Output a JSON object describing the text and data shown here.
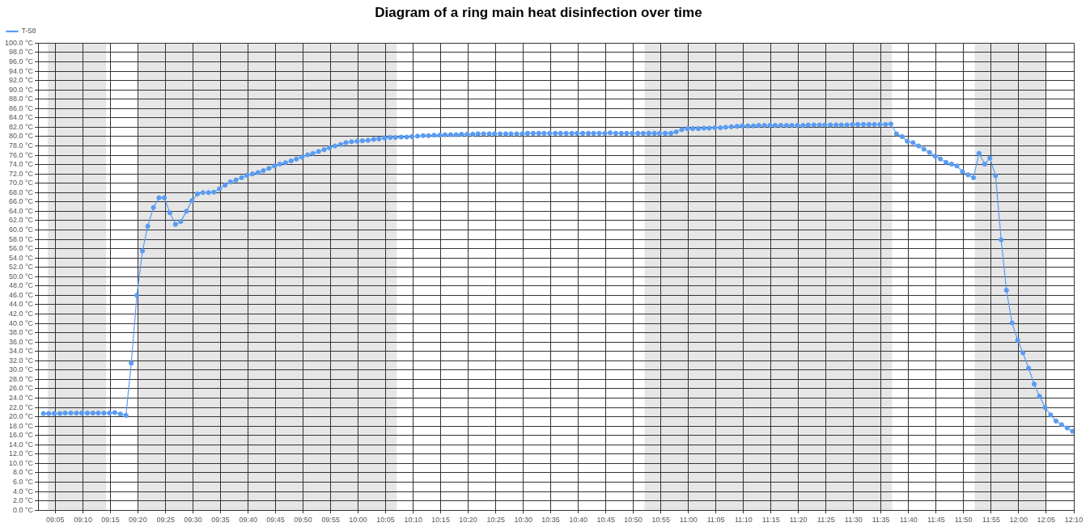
{
  "chart_data": {
    "type": "line",
    "title": "Diagram of a ring main heat disinfection over time",
    "xlim": [
      9.031,
      12.167
    ],
    "xticks": [
      {
        "value": 9.083,
        "label": "09:05"
      },
      {
        "value": 9.167,
        "label": "09:10"
      },
      {
        "value": 9.25,
        "label": "09:15"
      },
      {
        "value": 9.333,
        "label": "09:20"
      },
      {
        "value": 9.417,
        "label": "09:25"
      },
      {
        "value": 9.5,
        "label": "09:30"
      },
      {
        "value": 9.583,
        "label": "09:35"
      },
      {
        "value": 9.667,
        "label": "09:40"
      },
      {
        "value": 9.75,
        "label": "09:45"
      },
      {
        "value": 9.833,
        "label": "09:50"
      },
      {
        "value": 9.917,
        "label": "09:55"
      },
      {
        "value": 10,
        "label": "10:00"
      },
      {
        "value": 10.083,
        "label": "10:05"
      },
      {
        "value": 10.167,
        "label": "10:10"
      },
      {
        "value": 10.25,
        "label": "10:15"
      },
      {
        "value": 10.333,
        "label": "10:20"
      },
      {
        "value": 10.417,
        "label": "10:25"
      },
      {
        "value": 10.5,
        "label": "10:30"
      },
      {
        "value": 10.583,
        "label": "10:35"
      },
      {
        "value": 10.667,
        "label": "10:40"
      },
      {
        "value": 10.75,
        "label": "10:45"
      },
      {
        "value": 10.833,
        "label": "10:50"
      },
      {
        "value": 10.917,
        "label": "10:55"
      },
      {
        "value": 11,
        "label": "11:00"
      },
      {
        "value": 11.083,
        "label": "11:05"
      },
      {
        "value": 11.167,
        "label": "11:10"
      },
      {
        "value": 11.25,
        "label": "11:15"
      },
      {
        "value": 11.333,
        "label": "11:20"
      },
      {
        "value": 11.417,
        "label": "11:25"
      },
      {
        "value": 11.5,
        "label": "11:30"
      },
      {
        "value": 11.583,
        "label": "11:35"
      },
      {
        "value": 11.667,
        "label": "11:40"
      },
      {
        "value": 11.75,
        "label": "11:45"
      },
      {
        "value": 11.833,
        "label": "11:50"
      },
      {
        "value": 11.917,
        "label": "11:55"
      },
      {
        "value": 12,
        "label": "12:00"
      },
      {
        "value": 12.083,
        "label": "12:05"
      },
      {
        "value": 12.167,
        "label": "12:10"
      }
    ],
    "ylim": [
      0,
      100
    ],
    "yticks": [
      {
        "value": 0,
        "label": "0.0 °C"
      },
      {
        "value": 2,
        "label": "2.0 °C"
      },
      {
        "value": 4,
        "label": "4.0 °C"
      },
      {
        "value": 6,
        "label": "6.0 °C"
      },
      {
        "value": 8,
        "label": "8.0 °C"
      },
      {
        "value": 10,
        "label": "10.0 °C"
      },
      {
        "value": 12,
        "label": "12.0 °C"
      },
      {
        "value": 14,
        "label": "14.0 °C"
      },
      {
        "value": 16,
        "label": "16.0 °C"
      },
      {
        "value": 18,
        "label": "18.0 °C"
      },
      {
        "value": 20,
        "label": "20.0 °C"
      },
      {
        "value": 22,
        "label": "22.0 °C"
      },
      {
        "value": 24,
        "label": "24.0 °C"
      },
      {
        "value": 26,
        "label": "26.0 °C"
      },
      {
        "value": 28,
        "label": "28.0 °C"
      },
      {
        "value": 30,
        "label": "30.0 °C"
      },
      {
        "value": 32,
        "label": "32.0 °C"
      },
      {
        "value": 34,
        "label": "34.0 °C"
      },
      {
        "value": 36,
        "label": "36.0 °C"
      },
      {
        "value": 38,
        "label": "38.0 °C"
      },
      {
        "value": 40,
        "label": "40.0 °C"
      },
      {
        "value": 42,
        "label": "42.0 °C"
      },
      {
        "value": 44,
        "label": "44.0 °C"
      },
      {
        "value": 46,
        "label": "46.0 °C"
      },
      {
        "value": 48,
        "label": "48.0 °C"
      },
      {
        "value": 50,
        "label": "50.0 °C"
      },
      {
        "value": 52,
        "label": "52.0 °C"
      },
      {
        "value": 54,
        "label": "54.0 °C"
      },
      {
        "value": 56,
        "label": "56.0 °C"
      },
      {
        "value": 58,
        "label": "58.0 °C"
      },
      {
        "value": 60,
        "label": "60.0 °C"
      },
      {
        "value": 62,
        "label": "62.0 °C"
      },
      {
        "value": 64,
        "label": "64.0 °C"
      },
      {
        "value": 66,
        "label": "66.0 °C"
      },
      {
        "value": 68,
        "label": "68.0 °C"
      },
      {
        "value": 70,
        "label": "70.0 °C"
      },
      {
        "value": 72,
        "label": "72.0 °C"
      },
      {
        "value": 74,
        "label": "74.0 °C"
      },
      {
        "value": 76,
        "label": "76.0 °C"
      },
      {
        "value": 78,
        "label": "78.0 °C"
      },
      {
        "value": 80,
        "label": "80.0 °C"
      },
      {
        "value": 82,
        "label": "82.0 °C"
      },
      {
        "value": 84,
        "label": "84.0 °C"
      },
      {
        "value": 86,
        "label": "86.0 °C"
      },
      {
        "value": 88,
        "label": "88.0 °C"
      },
      {
        "value": 90,
        "label": "90.0 °C"
      },
      {
        "value": 92,
        "label": "92.0 °C"
      },
      {
        "value": 94,
        "label": "94.0 °C"
      },
      {
        "value": 96,
        "label": "96.0 °C"
      },
      {
        "value": 98,
        "label": "98.0 °C"
      },
      {
        "value": 100,
        "label": "100.0 °C"
      }
    ],
    "grid": true,
    "legend": "top left",
    "marker": "circle",
    "line_style": "solid",
    "bands": [
      {
        "axis": "x",
        "from": 9.06,
        "to": 9.237,
        "color": "#e6e6e6"
      },
      {
        "axis": "x",
        "from": 9.333,
        "to": 10.117,
        "color": "#e6e6e6"
      },
      {
        "axis": "x",
        "from": 10.867,
        "to": 11.617,
        "color": "#e6e6e6"
      },
      {
        "axis": "x",
        "from": 11.867,
        "to": 12.083,
        "color": "#e6e6e6"
      }
    ],
    "series": [
      {
        "name": "T-58",
        "color": "#5a9cf2",
        "x": [
          9.047,
          9.063,
          9.08,
          9.097,
          9.113,
          9.13,
          9.147,
          9.163,
          9.18,
          9.197,
          9.213,
          9.23,
          9.247,
          9.263,
          9.28,
          9.297,
          9.313,
          9.33,
          9.347,
          9.363,
          9.38,
          9.397,
          9.413,
          9.43,
          9.447,
          9.463,
          9.48,
          9.497,
          9.513,
          9.53,
          9.547,
          9.563,
          9.58,
          9.597,
          9.613,
          9.63,
          9.647,
          9.663,
          9.68,
          9.697,
          9.713,
          9.73,
          9.747,
          9.763,
          9.78,
          9.797,
          9.813,
          9.83,
          9.847,
          9.863,
          9.88,
          9.897,
          9.913,
          9.93,
          9.947,
          9.963,
          9.98,
          9.997,
          10.013,
          10.03,
          10.047,
          10.063,
          10.08,
          10.097,
          10.113,
          10.13,
          10.147,
          10.163,
          10.18,
          10.197,
          10.213,
          10.23,
          10.247,
          10.263,
          10.28,
          10.297,
          10.313,
          10.33,
          10.347,
          10.363,
          10.38,
          10.397,
          10.413,
          10.43,
          10.447,
          10.463,
          10.48,
          10.497,
          10.513,
          10.53,
          10.547,
          10.563,
          10.58,
          10.597,
          10.613,
          10.63,
          10.647,
          10.663,
          10.68,
          10.697,
          10.713,
          10.73,
          10.747,
          10.763,
          10.78,
          10.797,
          10.813,
          10.83,
          10.847,
          10.863,
          10.88,
          10.897,
          10.913,
          10.93,
          10.947,
          10.963,
          10.98,
          10.997,
          11.013,
          11.03,
          11.047,
          11.063,
          11.08,
          11.097,
          11.113,
          11.13,
          11.147,
          11.163,
          11.18,
          11.197,
          11.213,
          11.23,
          11.247,
          11.263,
          11.28,
          11.297,
          11.313,
          11.33,
          11.347,
          11.363,
          11.38,
          11.397,
          11.413,
          11.43,
          11.447,
          11.463,
          11.48,
          11.497,
          11.513,
          11.53,
          11.547,
          11.563,
          11.58,
          11.597,
          11.613,
          11.63,
          11.647,
          11.663,
          11.68,
          11.697,
          11.713,
          11.73,
          11.747,
          11.763,
          11.78,
          11.797,
          11.813,
          11.83,
          11.847,
          11.863,
          11.88,
          11.897,
          11.913,
          11.93,
          11.947,
          11.963,
          11.98,
          11.997,
          12.013,
          12.03,
          12.047,
          12.063,
          12.08,
          12.097,
          12.113,
          12.13,
          12.147,
          12.163
        ],
        "values": [
          20.7,
          20.7,
          20.7,
          20.7,
          20.8,
          20.8,
          20.8,
          20.8,
          20.8,
          20.8,
          20.8,
          20.8,
          20.8,
          20.9,
          20.6,
          20.3,
          31.5,
          46.0,
          55.5,
          60.8,
          64.8,
          66.9,
          66.9,
          63.7,
          61.2,
          61.8,
          64.0,
          66.3,
          67.7,
          68.0,
          68.0,
          68.1,
          68.8,
          69.6,
          70.3,
          70.7,
          71.2,
          71.7,
          72.0,
          72.3,
          72.7,
          73.2,
          73.7,
          74.1,
          74.4,
          74.8,
          75.2,
          75.6,
          76.1,
          76.4,
          76.8,
          77.2,
          77.6,
          78.0,
          78.3,
          78.7,
          78.9,
          79.0,
          79.1,
          79.2,
          79.4,
          79.5,
          79.7,
          79.8,
          79.8,
          79.9,
          79.9,
          80.0,
          80.1,
          80.2,
          80.2,
          80.3,
          80.3,
          80.4,
          80.4,
          80.4,
          80.5,
          80.5,
          80.5,
          80.6,
          80.6,
          80.6,
          80.6,
          80.6,
          80.6,
          80.6,
          80.6,
          80.6,
          80.7,
          80.7,
          80.7,
          80.7,
          80.7,
          80.7,
          80.7,
          80.7,
          80.7,
          80.7,
          80.7,
          80.7,
          80.7,
          80.7,
          80.7,
          80.8,
          80.7,
          80.7,
          80.7,
          80.7,
          80.7,
          80.7,
          80.7,
          80.7,
          80.7,
          80.7,
          80.7,
          81.0,
          81.5,
          81.7,
          81.7,
          81.7,
          81.8,
          81.8,
          81.9,
          81.9,
          82.0,
          82.1,
          82.2,
          82.3,
          82.3,
          82.3,
          82.4,
          82.4,
          82.4,
          82.4,
          82.4,
          82.4,
          82.4,
          82.4,
          82.4,
          82.5,
          82.5,
          82.5,
          82.5,
          82.5,
          82.5,
          82.5,
          82.5,
          82.6,
          82.6,
          82.6,
          82.6,
          82.6,
          82.6,
          82.6,
          82.7,
          80.6,
          80.0,
          79.0,
          78.7,
          78.0,
          77.3,
          76.6,
          75.8,
          75.2,
          74.5,
          74.1,
          73.7,
          72.5,
          71.8,
          71.2,
          76.4,
          74.1,
          75.4,
          71.6,
          57.9,
          47.1,
          40.1,
          36.4,
          33.7,
          30.4,
          27.0,
          24.4,
          22.0,
          20.4,
          19.1,
          18.3,
          17.6,
          16.9
        ]
      }
    ]
  }
}
